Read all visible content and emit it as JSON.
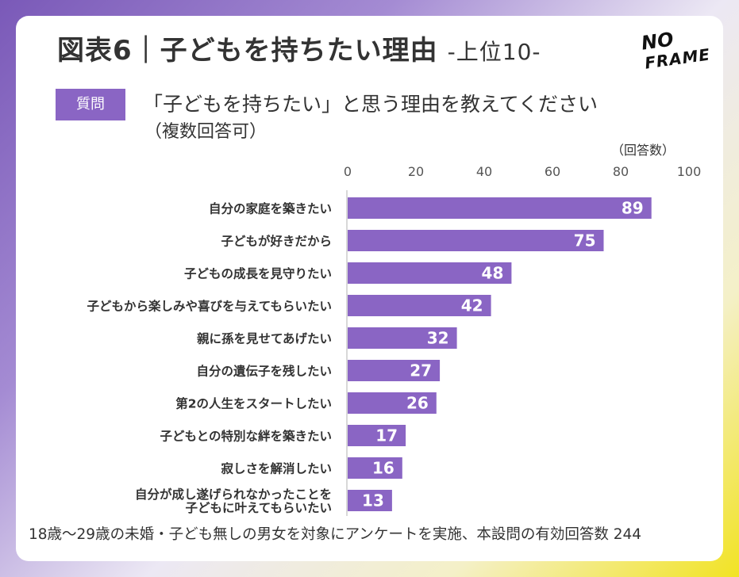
{
  "title": {
    "main": "図表6｜子どもを持ちたい理由",
    "sub": "-上位10-"
  },
  "logo": {
    "line1": "NO",
    "line2": "FRAME"
  },
  "question": {
    "badge": "質問",
    "text": "「子どもを持ちたい」と思う理由を教えてください",
    "note": "（複数回答可）"
  },
  "footnote": "18歳〜29歳の未婚・子ども無しの男女を対象にアンケートを実施、本設問の有効回答数 244",
  "colors": {
    "bar": "#8a65c4",
    "axis": "#cccccc",
    "text": "#333333"
  },
  "chart_data": {
    "type": "bar",
    "orientation": "horizontal",
    "unit_label": "（回答数）",
    "xlim": [
      0,
      100
    ],
    "ticks": [
      0,
      20,
      40,
      60,
      80,
      100
    ],
    "categories": [
      [
        "自分の家庭を築きたい"
      ],
      [
        "子どもが好きだから"
      ],
      [
        "子どもの成長を見守りたい"
      ],
      [
        "子どもから楽しみや喜びを与えてもらいたい"
      ],
      [
        "親に孫を見せてあげたい"
      ],
      [
        "自分の遺伝子を残したい"
      ],
      [
        "第2の人生をスタートしたい"
      ],
      [
        "子どもとの特別な絆を築きたい"
      ],
      [
        "寂しさを解消したい"
      ],
      [
        "自分が成し遂げられなかったことを",
        "子どもに叶えてもらいたい"
      ]
    ],
    "values": [
      89,
      75,
      48,
      42,
      32,
      27,
      26,
      17,
      16,
      13
    ]
  }
}
